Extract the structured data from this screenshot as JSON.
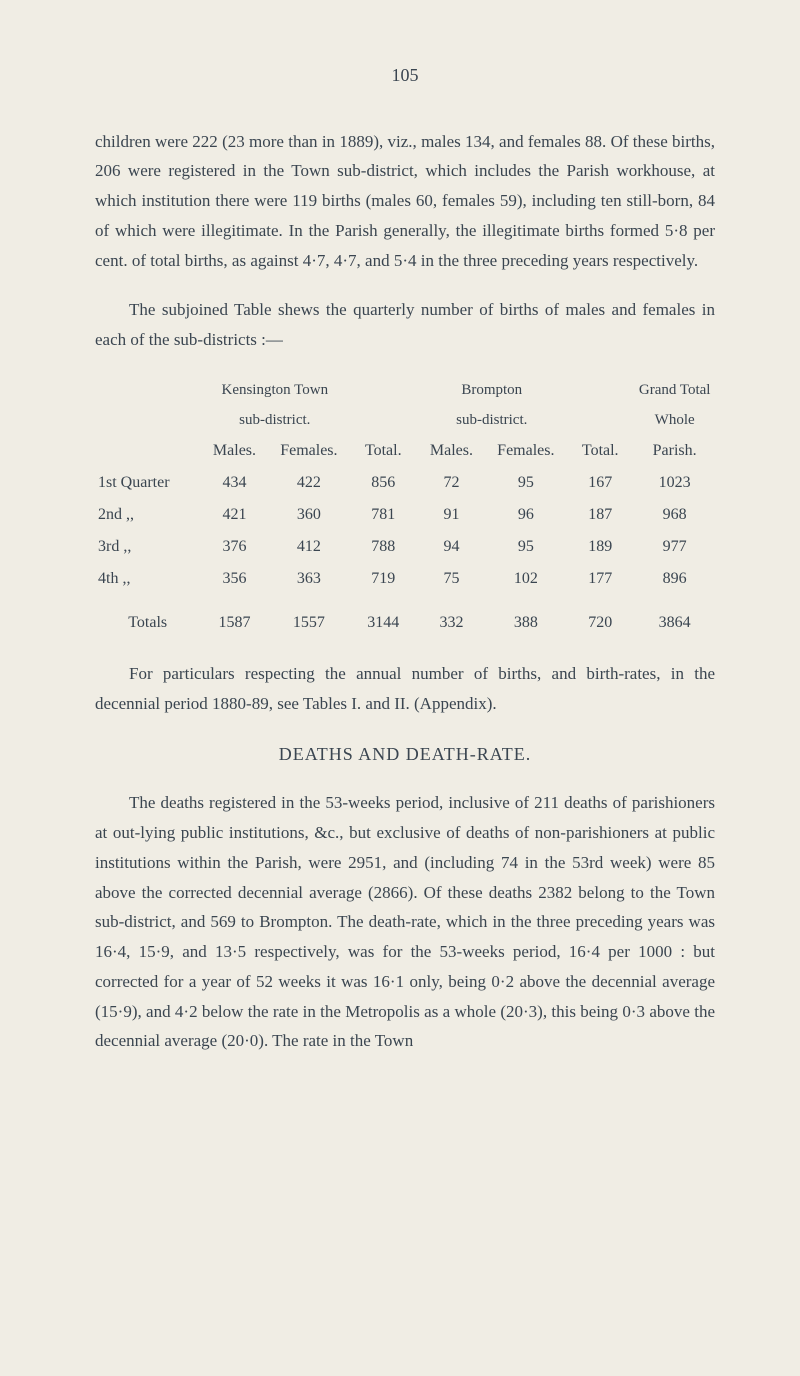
{
  "pageNumber": "105",
  "para1": "children were 222 (23 more than in 1889), viz., males 134, and females 88. Of these births, 206 were registered in the Town sub-district, which includes the Parish workhouse, at which institution there were 119 births (males 60, females 59), including ten still-born, 84 of which were illegitimate. In the Parish generally, the illegitimate births formed 5·8 per cent. of total births, as against 4·7, 4·7, and 5·4 in the three preceding years respectively.",
  "para2": "The subjoined Table shews the quarterly number of births of males and females in each of the sub-districts :—",
  "table": {
    "group1": "Kensington Town",
    "group1sub": "sub-district.",
    "group2": "Brompton",
    "group2sub": "sub-district.",
    "group3a": "Grand Total",
    "group3b": "Whole",
    "headers": [
      "",
      "Males.",
      "Females.",
      "Total.",
      "Males.",
      "Females.",
      "Total.",
      "Parish."
    ],
    "rows": [
      {
        "label": "1st Quarter",
        "cells": [
          "434",
          "422",
          "856",
          "72",
          "95",
          "167",
          "1023"
        ]
      },
      {
        "label": "2nd     ,,",
        "cells": [
          "421",
          "360",
          "781",
          "91",
          "96",
          "187",
          "968"
        ]
      },
      {
        "label": "3rd     ,,",
        "cells": [
          "376",
          "412",
          "788",
          "94",
          "95",
          "189",
          "977"
        ]
      },
      {
        "label": "4th     ,,",
        "cells": [
          "356",
          "363",
          "719",
          "75",
          "102",
          "177",
          "896"
        ]
      }
    ],
    "totals": {
      "label": "Totals",
      "cells": [
        "1587",
        "1557",
        "3144",
        "332",
        "388",
        "720",
        "3864"
      ]
    }
  },
  "para3": "For particulars respecting the annual number of births, and birth-rates, in the decennial period 1880-89, see Tables I. and II. (Appendix).",
  "heading": "DEATHS AND DEATH-RATE.",
  "para4": "The deaths registered in the 53-weeks period, inclusive of 211 deaths of parishioners at out-lying public institutions, &c., but exclusive of deaths of non-parishioners at public institutions within the Parish, were 2951, and (including 74 in the 53rd week) were 85 above the corrected decennial average (2866). Of these deaths 2382 belong to the Town sub-district, and 569 to Brompton. The death-rate, which in the three preceding years was 16·4, 15·9, and 13·5 respectively, was for the 53-weeks period, 16·4 per 1000 : but corrected for a year of 52 weeks it was 16·1 only, being 0·2 above the decennial average (15·9), and 4·2 below the rate in the Metropolis as a whole (20·3), this being 0·3 above the decennial average (20·0). The rate in the Town"
}
